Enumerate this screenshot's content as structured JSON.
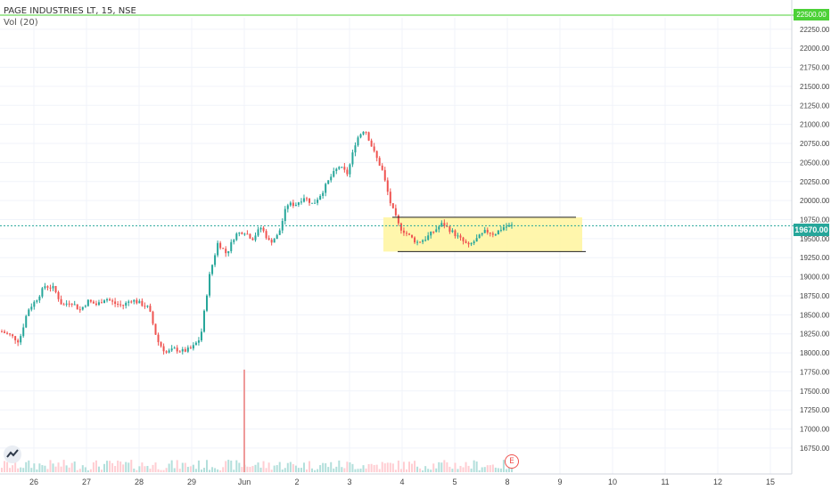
{
  "header": {
    "symbol": "PAGE INDUSTRIES LT, 15, NSE",
    "volume_indicator": "Vol (20)"
  },
  "price_scale": {
    "last_price_label": "19670.00",
    "level_label": "22500.00",
    "colors": {
      "up": "#26a69a",
      "down": "#ef5350",
      "level_line": "#4cd137",
      "last_line": "#26a69a",
      "box": "#fff59d"
    }
  },
  "earnings_marker": "E",
  "logo_icon": "tradingview-logo-icon",
  "chart_data": {
    "type": "candlestick",
    "y_ticks": [
      16750,
      17000,
      17250,
      17500,
      17750,
      18000,
      18250,
      18500,
      18750,
      19000,
      19250,
      19500,
      19750,
      20000,
      20250,
      20500,
      20750,
      21000,
      21250,
      21500,
      21750,
      22000,
      22250
    ],
    "ylim": [
      16550,
      22400
    ],
    "x_ticks": [
      "26",
      "27",
      "28",
      "29",
      "Jun",
      "2",
      "3",
      "4",
      "5",
      "8",
      "9",
      "10",
      "11",
      "12",
      "15"
    ],
    "horizontal_lines": [
      {
        "price": 22500,
        "color": "#4cd137"
      },
      {
        "price": 19670,
        "color": "#26a69a",
        "style": "dotted"
      }
    ],
    "range_box": {
      "top": 19780,
      "bottom": 19330,
      "highlight": "#fff59d"
    },
    "price_path": [
      [
        0,
        18280
      ],
      [
        1,
        18230
      ],
      [
        2,
        18150
      ],
      [
        3,
        18560
      ],
      [
        4,
        18700
      ],
      [
        5,
        18880
      ],
      [
        6,
        18850
      ],
      [
        7,
        18620
      ],
      [
        8,
        18680
      ],
      [
        9,
        18560
      ],
      [
        10,
        18680
      ],
      [
        11,
        18630
      ],
      [
        12,
        18720
      ],
      [
        13,
        18650
      ],
      [
        14,
        18620
      ],
      [
        15,
        18700
      ],
      [
        16,
        18650
      ],
      [
        17,
        18590
      ],
      [
        18,
        18160
      ],
      [
        19,
        18000
      ],
      [
        20,
        18050
      ],
      [
        21,
        18020
      ],
      [
        22,
        18060
      ],
      [
        23,
        18200
      ],
      [
        24,
        19000
      ],
      [
        25,
        19450
      ],
      [
        26,
        19300
      ],
      [
        27,
        19550
      ],
      [
        28,
        19600
      ],
      [
        29,
        19500
      ],
      [
        30,
        19650
      ],
      [
        31,
        19450
      ],
      [
        32,
        19550
      ],
      [
        33,
        19950
      ],
      [
        34,
        19950
      ],
      [
        35,
        20050
      ],
      [
        36,
        19950
      ],
      [
        37,
        20100
      ],
      [
        38,
        20300
      ],
      [
        39,
        20450
      ],
      [
        40,
        20350
      ],
      [
        41,
        20800
      ],
      [
        42,
        20950
      ],
      [
        43,
        20650
      ],
      [
        44,
        20400
      ],
      [
        45,
        19950
      ],
      [
        46,
        19650
      ],
      [
        47,
        19550
      ],
      [
        48,
        19450
      ],
      [
        49,
        19500
      ],
      [
        50,
        19600
      ],
      [
        51,
        19700
      ],
      [
        52,
        19600
      ],
      [
        53,
        19500
      ],
      [
        54,
        19400
      ],
      [
        55,
        19500
      ],
      [
        56,
        19600
      ],
      [
        57,
        19560
      ],
      [
        58,
        19650
      ],
      [
        59,
        19670
      ]
    ],
    "volume_spike": 17780
  }
}
